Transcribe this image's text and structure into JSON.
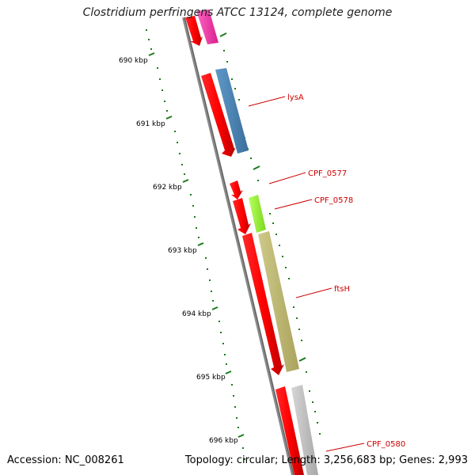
{
  "title": "Clostridium perfringens ATCC 13124, complete genome",
  "footer": {
    "accession": "Accession: NC_008261",
    "topology": "Topology: circular; Length: 3,256,683 bp; Genes: 2,993"
  },
  "scale_labels": [
    "690 kbp",
    "691 kbp",
    "692 kbp",
    "693 kbp",
    "694 kbp",
    "695 kbp",
    "696 kbp"
  ],
  "gene_labels": [
    "lysA",
    "CPF_0577",
    "CPF_0578",
    "ftsH",
    "CPF_0580"
  ],
  "colors": {
    "backbone": "#7a7a7a",
    "scale_ticks": "#1a7a1a",
    "gene_arrow": "#ff0000",
    "label": "#cc0000",
    "cog_pink": "#ff33aa",
    "cog_blue": "#4682b4",
    "cog_lime": "#99ff33",
    "cog_khaki": "#bdb76b",
    "cog_gray": "#c0c0c0"
  }
}
